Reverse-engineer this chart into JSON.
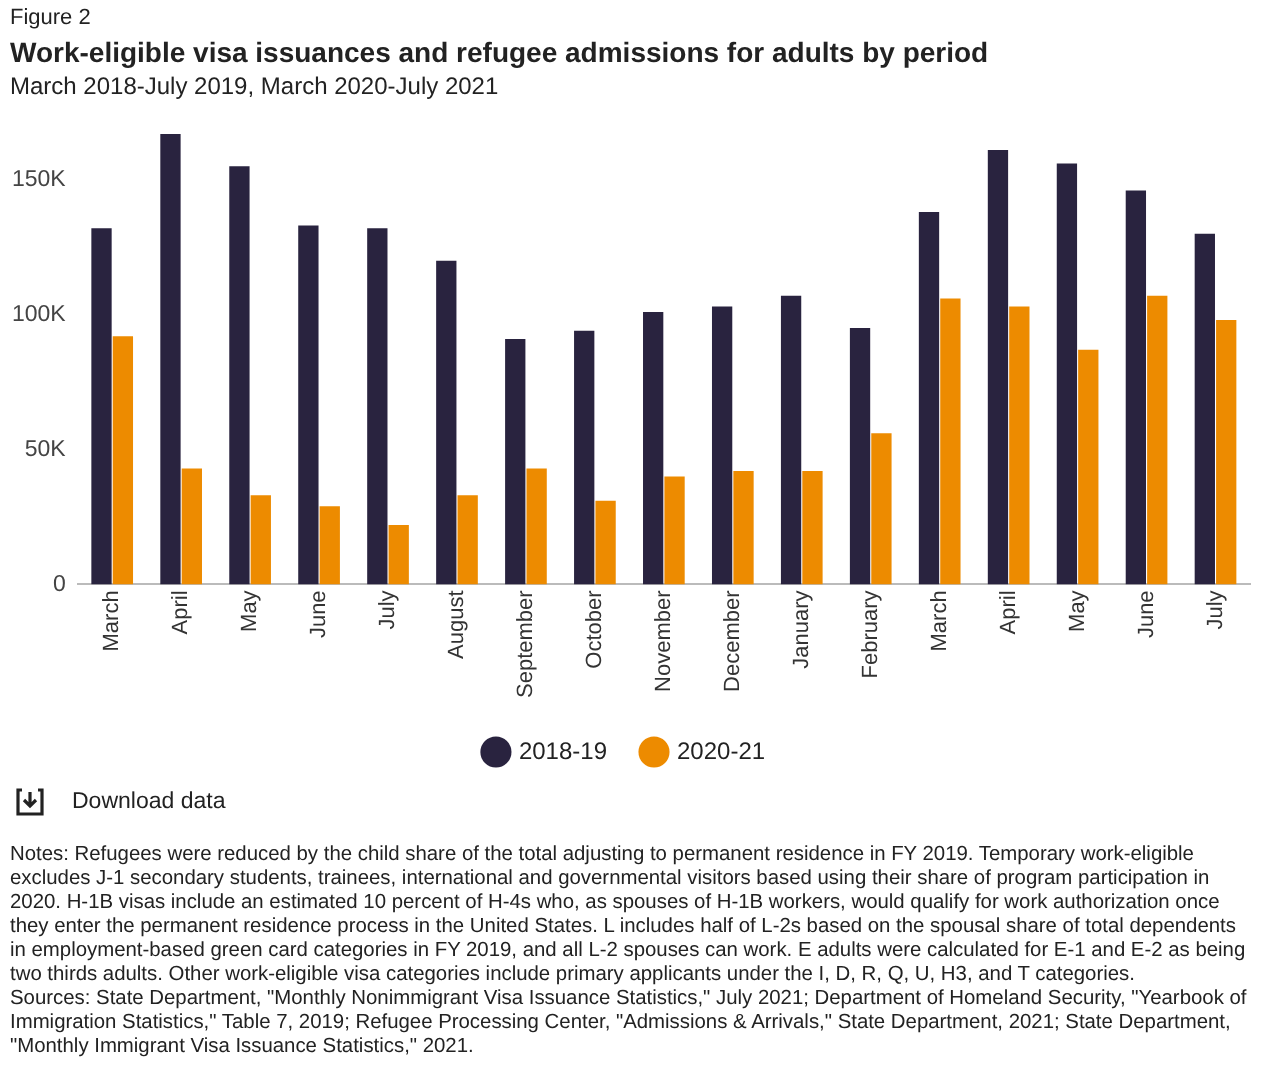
{
  "chart_data": {
    "type": "bar",
    "title": "Work-eligible visa issuances and refugee admissions for adults by period",
    "subtitle": "March 2018-July 2019, March 2020-July 2021",
    "categories": [
      "March",
      "April",
      "May",
      "June",
      "July",
      "August",
      "September",
      "October",
      "November",
      "December",
      "January",
      "February",
      "March",
      "April",
      "May",
      "June",
      "July"
    ],
    "series": [
      {
        "name": "2018-19",
        "color": "#29233f",
        "values": [
          132000,
          167000,
          155000,
          133000,
          132000,
          120000,
          91000,
          94000,
          101000,
          103000,
          107000,
          95000,
          138000,
          161000,
          156000,
          146000,
          130000
        ]
      },
      {
        "name": "2020-21",
        "color": "#ed8b00",
        "values": [
          92000,
          43000,
          33000,
          29000,
          22000,
          33000,
          43000,
          31000,
          40000,
          42000,
          42000,
          56000,
          106000,
          103000,
          87000,
          107000,
          98000
        ]
      }
    ],
    "ylim": [
      0,
      170000
    ],
    "yticks": [
      {
        "value": 0,
        "label": "0"
      },
      {
        "value": 50000,
        "label": "50K"
      },
      {
        "value": 100000,
        "label": "100K"
      },
      {
        "value": 150000,
        "label": "150K"
      }
    ],
    "grid": false,
    "legend": "bottom",
    "annotations": [
      "Figure 2",
      "Download data",
      "Notes: Refugees were reduced by the child share of the total adjusting to permanent residence in FY 2019. Temporary work-eligible excludes J-1 secondary students, trainees, international and governmental visitors based using their share of program participation in 2020. H-1B visas include an estimated 10 percent of H-4s who, as spouses of H-1B workers, would qualify for work authorization once they enter the permanent residence process in the United States. L includes half of L-2s based on the spousal share of total dependents in employment-based green card categories in FY 2019, and all L-2 spouses can work. E adults were calculated for E-1 and E-2 as being two thirds adults. Other work-eligible visa categories include primary applicants under the I, D, R, Q, U, H3, and T categories.",
      "Sources: State Department, \"Monthly Nonimmigrant Visa Issuance Statistics,\" July 2021; Department of Homeland Security, \"Yearbook of Immigration Statistics,\" Table 7, 2019; Refugee Processing Center, \"Admissions & Arrivals,\" State Department, 2021; State Department, \"Monthly Immigrant Visa Issuance Statistics,\" 2021."
    ]
  }
}
